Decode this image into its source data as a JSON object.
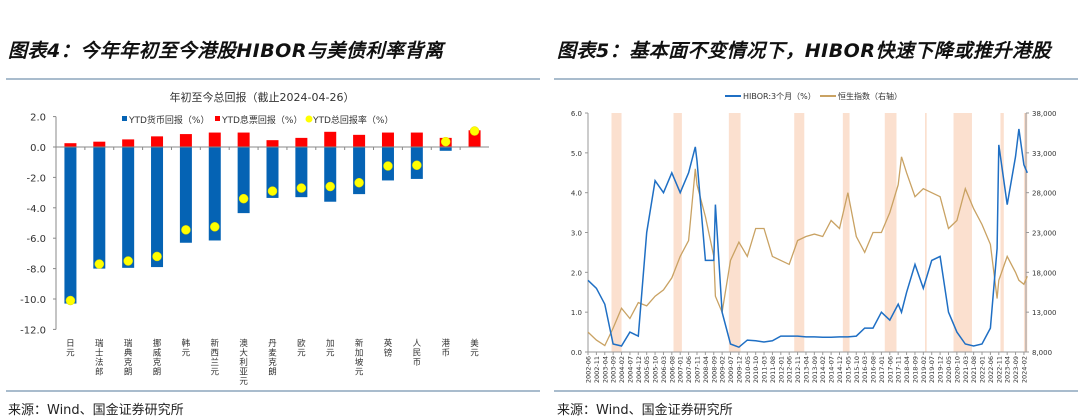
{
  "figure4": {
    "title": "图表4：今年年初至今港股HIBOR与美债利率背离",
    "source": "来源：Wind、国金证券研究所"
  },
  "figure5": {
    "title": "图表5：基本面不变情况下，HIBOR快速下降或推升港股",
    "source": "来源：Wind、国金证券研究所"
  },
  "chart_data": [
    {
      "type": "bar",
      "stacked": true,
      "title": "年初至今总回报（截止2024-04-26）",
      "ylim": [
        -12,
        2
      ],
      "yticks": [
        "2.0",
        "0.0",
        "-2.0",
        "-4.0",
        "-6.0",
        "-8.0",
        "-10.0",
        "-12.0"
      ],
      "legend_position": "top",
      "categories": [
        "日元",
        "瑞士法郎",
        "瑞典克朗",
        "挪威克朗",
        "韩元",
        "新西兰元",
        "澳大利亚元",
        "丹麦克朗",
        "欧元",
        "加元",
        "新加坡元",
        "英镑",
        "人民币",
        "港币",
        "美元"
      ],
      "series": [
        {
          "name": "YTD货币回报（%）",
          "kind": "bar",
          "color": "#0563b4",
          "values": [
            -10.3,
            -8.0,
            -7.95,
            -7.9,
            -6.3,
            -6.15,
            -4.35,
            -3.35,
            -3.3,
            -3.6,
            -3.1,
            -2.2,
            -2.1,
            -0.25,
            0.0
          ]
        },
        {
          "name": "YTD息票回报（%）",
          "kind": "bar",
          "color": "#ff0000",
          "values": [
            0.25,
            0.35,
            0.5,
            0.7,
            0.85,
            0.95,
            0.95,
            0.45,
            0.6,
            1.0,
            0.8,
            0.95,
            0.95,
            0.6,
            1.1
          ]
        },
        {
          "name": "YTD总回报率（%）",
          "kind": "scatter",
          "color": "#ffff00",
          "values": [
            -10.1,
            -7.7,
            -7.5,
            -7.2,
            -5.45,
            -5.25,
            -3.4,
            -2.9,
            -2.7,
            -2.6,
            -2.35,
            -1.25,
            -1.2,
            0.35,
            1.05
          ]
        }
      ]
    },
    {
      "type": "line",
      "dual_axis": true,
      "legend_position": "top",
      "ylim_left": [
        0,
        6
      ],
      "yticks_left": [
        "0.0",
        "1.0",
        "2.0",
        "3.0",
        "4.0",
        "5.0",
        "6.0"
      ],
      "ylim_right": [
        8000,
        38000
      ],
      "yticks_right": [
        "8,000",
        "13,000",
        "18,000",
        "23,000",
        "28,000",
        "33,000",
        "38,000"
      ],
      "x_ticks": [
        "2002-06",
        "2002-11",
        "2003-04",
        "2003-09",
        "2004-02",
        "2004-07",
        "2004-12",
        "2005-05",
        "2005-10",
        "2006-03",
        "2006-08",
        "2007-01",
        "2007-06",
        "2007-11",
        "2008-04",
        "2008-09",
        "2009-02",
        "2009-07",
        "2009-12",
        "2010-05",
        "2010-10",
        "2011-03",
        "2011-08",
        "2012-01",
        "2012-06",
        "2012-11",
        "2013-04",
        "2013-09",
        "2014-02",
        "2014-07",
        "2014-12",
        "2015-05",
        "2015-10",
        "2016-03",
        "2016-08",
        "2017-01",
        "2017-06",
        "2017-11",
        "2018-04",
        "2018-09",
        "2019-02",
        "2019-07",
        "2019-12",
        "2020-05",
        "2020-10",
        "2021-03",
        "2021-08",
        "2022-01",
        "2022-06",
        "2022-11",
        "2023-04",
        "2023-09",
        "2024-02"
      ],
      "x": [
        "2002-06",
        "2002-11",
        "2003-04",
        "2003-09",
        "2004-02",
        "2004-07",
        "2004-12",
        "2005-05",
        "2005-10",
        "2006-03",
        "2006-08",
        "2007-01",
        "2007-06",
        "2007-10",
        "2007-11",
        "2008-04",
        "2008-09",
        "2008-10",
        "2009-02",
        "2009-07",
        "2009-12",
        "2010-05",
        "2010-10",
        "2011-03",
        "2011-08",
        "2012-01",
        "2012-06",
        "2012-11",
        "2013-04",
        "2013-09",
        "2014-02",
        "2014-07",
        "2014-12",
        "2015-05",
        "2015-10",
        "2016-03",
        "2016-08",
        "2017-01",
        "2017-06",
        "2017-11",
        "2018-01",
        "2018-04",
        "2018-09",
        "2019-02",
        "2019-07",
        "2019-12",
        "2020-05",
        "2020-10",
        "2021-03",
        "2021-08",
        "2022-01",
        "2022-06",
        "2022-10",
        "2022-11",
        "2023-04",
        "2023-09",
        "2023-11",
        "2024-02",
        "2024-04"
      ],
      "series": [
        {
          "name": "HIBOR:3个月（%）",
          "axis": "left",
          "color": "#1f6fc4",
          "values": [
            1.8,
            1.6,
            1.2,
            0.2,
            0.15,
            0.5,
            0.4,
            3.0,
            4.3,
            4.0,
            4.5,
            4.0,
            4.5,
            5.15,
            4.8,
            2.3,
            2.3,
            3.7,
            1.0,
            0.2,
            0.12,
            0.3,
            0.28,
            0.25,
            0.28,
            0.4,
            0.4,
            0.4,
            0.38,
            0.38,
            0.37,
            0.37,
            0.38,
            0.38,
            0.4,
            0.6,
            0.6,
            1.0,
            0.8,
            1.2,
            1.0,
            1.5,
            2.2,
            1.6,
            2.3,
            2.4,
            1.0,
            0.5,
            0.2,
            0.15,
            0.2,
            0.6,
            2.6,
            5.2,
            3.7,
            4.9,
            5.6,
            4.7,
            4.5
          ]
        },
        {
          "name": "恒生指数（右轴）",
          "axis": "right",
          "color": "#c9a263",
          "values": [
            10500,
            9500,
            8800,
            11000,
            13500,
            12200,
            14200,
            13800,
            15000,
            15800,
            17300,
            20000,
            22000,
            31000,
            29000,
            25000,
            20000,
            15000,
            13000,
            19500,
            21800,
            20000,
            23500,
            23500,
            20000,
            19500,
            19000,
            22000,
            22500,
            22800,
            22500,
            24500,
            23500,
            28000,
            22500,
            20500,
            23000,
            23000,
            25500,
            29000,
            32500,
            30500,
            27500,
            28500,
            28000,
            27500,
            23500,
            24500,
            28500,
            26000,
            24000,
            21500,
            14700,
            17000,
            20000,
            18000,
            17000,
            16500,
            17500
          ]
        }
      ],
      "shaded_periods": [
        [
          "2003-08",
          "2004-02"
        ],
        [
          "2006-09",
          "2007-02"
        ],
        [
          "2009-06",
          "2010-01"
        ],
        [
          "2012-09",
          "2013-03"
        ],
        [
          "2015-02",
          "2015-06"
        ],
        [
          "2017-03",
          "2017-10"
        ],
        [
          "2019-03",
          "2019-04"
        ],
        [
          "2020-08",
          "2021-07"
        ],
        [
          "2022-12",
          "2023-02"
        ],
        [
          "2024-02",
          "2024-04"
        ]
      ],
      "shade_color": "#fbe0cf"
    }
  ]
}
